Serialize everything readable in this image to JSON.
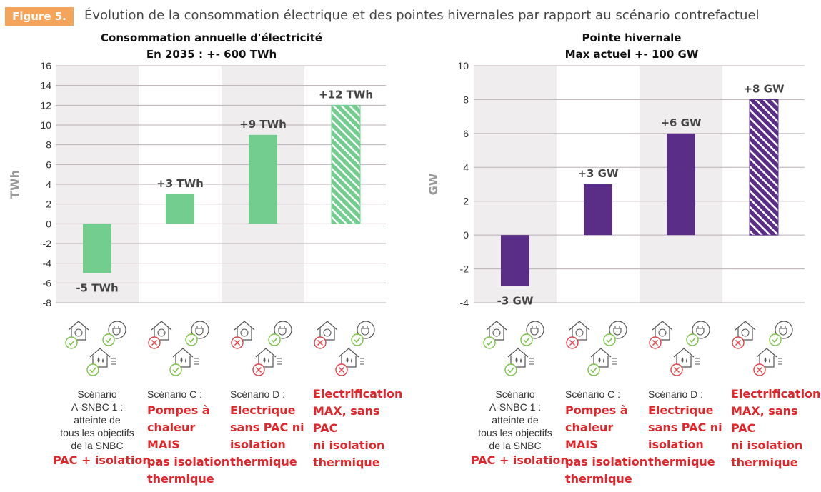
{
  "figure": {
    "badge": "Figure 5.",
    "title": "Évolution de la consommation électrique et des pointes hivernales par rapport au scénario contrefactuel"
  },
  "colors": {
    "badge": "#f5a55b",
    "green": "#72cd8f",
    "purple": "#5a2e87",
    "band": "#efeded",
    "grid": "#b9b0b6",
    "red_text": "#e0262a",
    "check": "#7cc24b",
    "cross": "#e2434a"
  },
  "chart_data": [
    {
      "type": "bar",
      "title": "Consommation annuelle d'électricité",
      "subtitle": "En 2035 : +- 600 TWh",
      "ylabel": "TWh",
      "ylim": [
        -8,
        16
      ],
      "yticks": [
        "16",
        "14",
        "12",
        "10",
        "8",
        "6",
        "4",
        "2",
        "0",
        "-2",
        "-4",
        "-6",
        "-8"
      ],
      "values": [
        -5,
        3,
        9,
        12
      ],
      "data_labels": [
        "-5 TWh",
        "+3 TWh",
        "+9 TWh",
        "+12 TWh"
      ],
      "hatched": [
        false,
        false,
        false,
        true
      ],
      "color": "#72cd8f",
      "grid": true
    },
    {
      "type": "bar",
      "title": "Pointe hivernale",
      "subtitle": "Max actuel +- 100 GW",
      "ylabel": "GW",
      "ylim": [
        -4,
        10
      ],
      "yticks": [
        "10",
        "8",
        "6",
        "4",
        "2",
        "0",
        "-2",
        "-4"
      ],
      "values": [
        -3,
        3,
        6,
        8
      ],
      "data_labels": [
        "-3 GW",
        "+3 GW",
        "+6 GW",
        "+8 GW"
      ],
      "hatched": [
        false,
        false,
        false,
        true
      ],
      "color": "#5a2e87",
      "grid": true
    }
  ],
  "scenarios": [
    {
      "plain": "Scénario\nA-SNBC 1 :\natteinte de\ntous les objectifs\nde la SNBC",
      "red": "PAC + isolation",
      "icons": {
        "pac": "ok",
        "electric": "ok",
        "insulation": "ok"
      }
    },
    {
      "plain": "Scénario C :",
      "red": "Pompes à\nchaleur\nMAIS\npas isolation\nthermique",
      "icons": {
        "pac": "no",
        "electric": "ok",
        "insulation": "ok"
      }
    },
    {
      "plain": "Scénario D :",
      "red": "Electrique\nsans PAC ni\nisolation\nthermique",
      "icons": {
        "pac": "no",
        "electric": "ok",
        "insulation": "no"
      }
    },
    {
      "plain": "",
      "red": "Electrification\nMAX, sans\nPAC\nni isolation\nthermique",
      "icons": {
        "pac": "no",
        "electric": "ok",
        "insulation": "no"
      }
    }
  ]
}
